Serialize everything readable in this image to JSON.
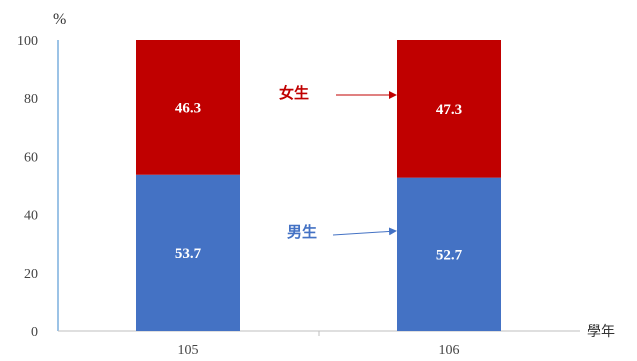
{
  "chart_data": {
    "type": "bar",
    "stacked": true,
    "categories": [
      "105",
      "106"
    ],
    "series": [
      {
        "name": "男生",
        "values": [
          53.7,
          52.7
        ],
        "color": "#4472C4"
      },
      {
        "name": "女生",
        "values": [
          46.3,
          47.3
        ],
        "color": "#C00000"
      }
    ],
    "ylabel": "%",
    "xlabel": "學年",
    "ylim": [
      0,
      100
    ],
    "yticks": [
      0,
      20,
      40,
      60,
      80,
      100
    ],
    "grid": false,
    "annotations": [
      {
        "text": "女生",
        "series": "女生",
        "color": "#C00000"
      },
      {
        "text": "男生",
        "series": "男生",
        "color": "#4472C4"
      }
    ]
  }
}
